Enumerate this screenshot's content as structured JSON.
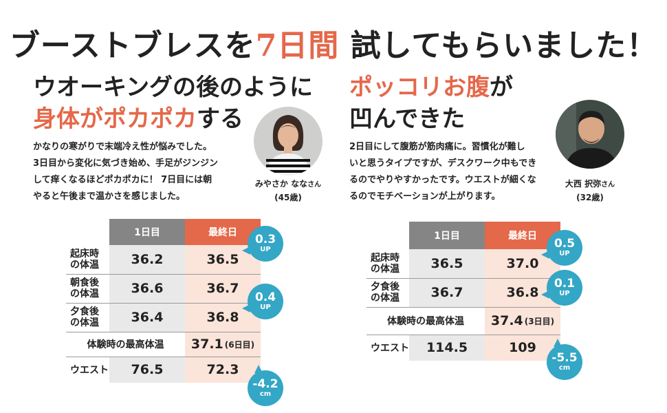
{
  "header": {
    "title_part1": "ブーストブレスを",
    "title_highlight": "7日間",
    "title_part2": "試してもらいました！"
  },
  "left": {
    "title_line1": "ウオーキングの後のように",
    "title_line2_orange": "身体がポカポカ",
    "title_line2_rest": "する",
    "description": [
      "かなりの寒がりで末端冷え性が悩みでした。",
      "3日目から変化に気づき始め、手足がジンジン",
      "して痒くなるほどポカポカに！ 7日目には朝",
      "やると午後まで温かさを感じました。"
    ],
    "person": {
      "name": "みやさか なな",
      "honorific": "さん",
      "age": "(45歳)"
    },
    "table": {
      "header_day1": "1日目",
      "header_last": "最終日",
      "rows": [
        {
          "label_line1": "起床時",
          "label_line2": "の体温",
          "day1": "36.2",
          "last": "36.5"
        },
        {
          "label_line1": "朝食後",
          "label_line2": "の体温",
          "day1": "36.6",
          "last": "36.7"
        },
        {
          "label_line1": "夕食後",
          "label_line2": "の体温",
          "day1": "36.4",
          "last": "36.8"
        }
      ],
      "max_label": "体験時の最高体温",
      "max_value": "37.1",
      "max_note": "(6日目)",
      "waist_label": "ウエスト",
      "waist_day1": "76.5",
      "waist_last": "72.3"
    },
    "badges": [
      {
        "value": "0.3",
        "unit": "UP"
      },
      {
        "value": "0.4",
        "unit": "UP"
      },
      {
        "value": "-4.2",
        "unit": "cm"
      }
    ]
  },
  "right": {
    "title_line1_orange": "ポッコリお腹",
    "title_line1_rest": "が",
    "title_line2": "凹んできた",
    "description": [
      "2日目にして腹筋が筋肉痛に。習慣化が難し",
      "いと思うタイプですが、デスクワーク中もでき",
      "るのでやりやすかったです。ウエストが細くな",
      "るのでモチベーションが上がります。"
    ],
    "person": {
      "name": "大西 択弥",
      "honorific": "さん",
      "age": "(32歳)"
    },
    "table": {
      "header_day1": "1日目",
      "header_last": "最終日",
      "rows": [
        {
          "label_line1": "起床時",
          "label_line2": "の体温",
          "day1": "36.5",
          "last": "37.0"
        },
        {
          "label_line1": "夕食後",
          "label_line2": "の体温",
          "day1": "36.7",
          "last": "36.8"
        }
      ],
      "max_label": "体験時の最高体温",
      "max_value": "37.4",
      "max_note": "(3日目)",
      "waist_label": "ウエスト",
      "waist_day1": "114.5",
      "waist_last": "109"
    },
    "badges": [
      {
        "value": "0.5",
        "unit": "UP"
      },
      {
        "value": "0.1",
        "unit": "UP"
      },
      {
        "value": "-5.5",
        "unit": "cm"
      }
    ]
  }
}
